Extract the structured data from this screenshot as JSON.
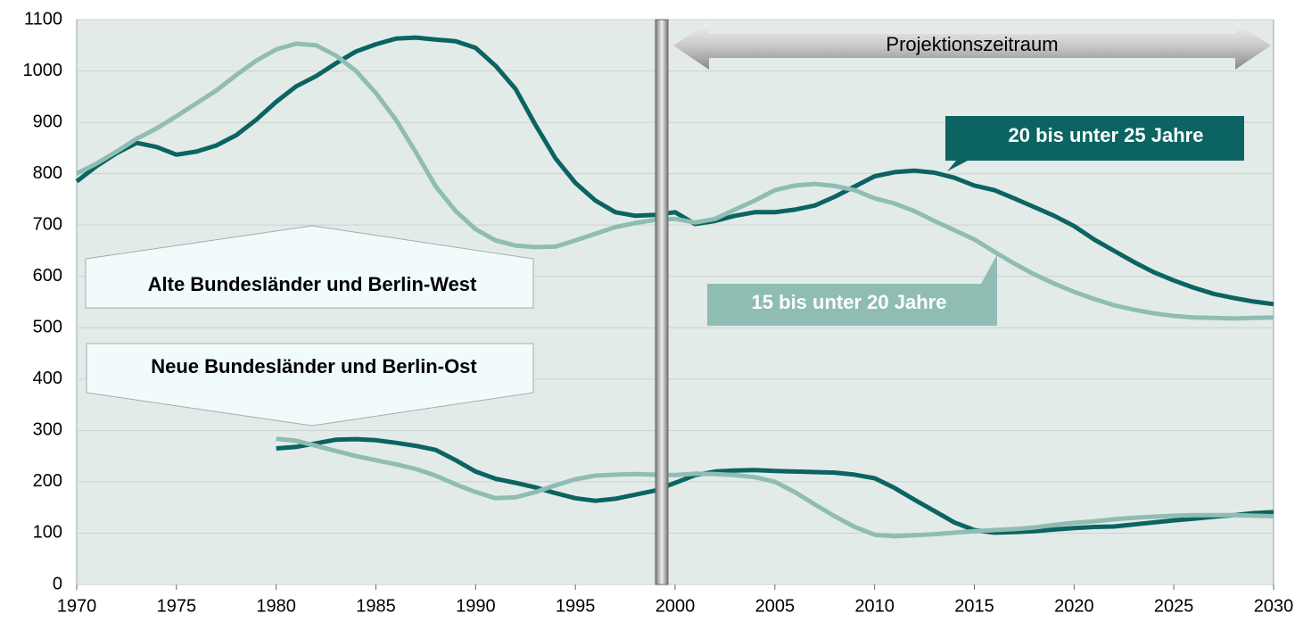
{
  "chart_data": {
    "type": "line",
    "regions": {
      "west": "Alte Bundesländer und Berlin-West",
      "east": "Neue Bundesländer und Berlin-Ost"
    },
    "annotation": "Projektionszeitraum",
    "x": [
      1970,
      1971,
      1972,
      1973,
      1974,
      1975,
      1976,
      1977,
      1978,
      1979,
      1980,
      1981,
      1982,
      1983,
      1984,
      1985,
      1986,
      1987,
      1988,
      1989,
      1990,
      1991,
      1992,
      1993,
      1994,
      1995,
      1996,
      1997,
      1998,
      1999,
      2000,
      2001,
      2002,
      2003,
      2004,
      2005,
      2006,
      2007,
      2008,
      2009,
      2010,
      2011,
      2012,
      2013,
      2014,
      2015,
      2016,
      2017,
      2018,
      2019,
      2020,
      2021,
      2022,
      2023,
      2024,
      2025,
      2026,
      2027,
      2028,
      2029,
      2030
    ],
    "series": [
      {
        "name": "20 bis unter 25 Jahre",
        "color": "#0b6461",
        "west": [
          785,
          815,
          840,
          860,
          852,
          837,
          843,
          855,
          875,
          905,
          940,
          970,
          990,
          1015,
          1038,
          1052,
          1063,
          1065,
          1061,
          1058,
          1045,
          1010,
          965,
          895,
          830,
          782,
          748,
          725,
          718,
          720,
          725,
          702,
          708,
          718,
          725,
          725,
          730,
          738,
          755,
          775,
          795,
          803,
          806,
          802,
          792,
          777,
          768,
          752,
          735,
          718,
          698,
          672,
          650,
          628,
          608,
          592,
          578,
          566,
          558,
          551,
          546
        ],
        "east": [
          null,
          null,
          null,
          null,
          null,
          null,
          null,
          null,
          null,
          null,
          265,
          268,
          275,
          282,
          283,
          281,
          276,
          270,
          262,
          242,
          220,
          206,
          198,
          189,
          178,
          168,
          163,
          167,
          175,
          183,
          198,
          213,
          220,
          222,
          223,
          221,
          220,
          219,
          218,
          214,
          207,
          188,
          165,
          143,
          121,
          106,
          101,
          102,
          104,
          107,
          110,
          112,
          113,
          117,
          121,
          125,
          128,
          132,
          135,
          139,
          141
        ]
      },
      {
        "name": "15 bis unter 20 Jahre",
        "color": "#8fbdb3",
        "west": [
          800,
          820,
          843,
          868,
          888,
          912,
          937,
          962,
          992,
          1020,
          1042,
          1053,
          1050,
          1030,
          1000,
          957,
          905,
          842,
          775,
          727,
          692,
          670,
          660,
          657,
          658,
          670,
          683,
          696,
          704,
          710,
          712,
          705,
          712,
          730,
          748,
          768,
          777,
          780,
          776,
          768,
          752,
          742,
          727,
          708,
          690,
          672,
          648,
          625,
          604,
          586,
          570,
          556,
          544,
          535,
          528,
          523,
          520,
          519,
          518,
          519,
          520
        ],
        "east": [
          null,
          null,
          null,
          null,
          null,
          null,
          null,
          null,
          null,
          null,
          284,
          280,
          270,
          260,
          250,
          242,
          234,
          225,
          212,
          195,
          180,
          168,
          170,
          180,
          193,
          205,
          212,
          214,
          215,
          214,
          213,
          216,
          215,
          213,
          209,
          200,
          180,
          156,
          133,
          112,
          97,
          94,
          96,
          98,
          101,
          104,
          106,
          108,
          111,
          116,
          120,
          123,
          127,
          130,
          132,
          134,
          135,
          135,
          135,
          134,
          133
        ]
      }
    ],
    "xlim": [
      1970,
      2030
    ],
    "xticks": [
      1970,
      1975,
      1980,
      1985,
      1990,
      1995,
      2000,
      2005,
      2010,
      2015,
      2020,
      2025,
      2030
    ],
    "ylim": [
      0,
      1100
    ],
    "yticks": [
      0,
      100,
      200,
      300,
      400,
      500,
      600,
      700,
      800,
      900,
      1000,
      1100
    ],
    "grid": true
  }
}
